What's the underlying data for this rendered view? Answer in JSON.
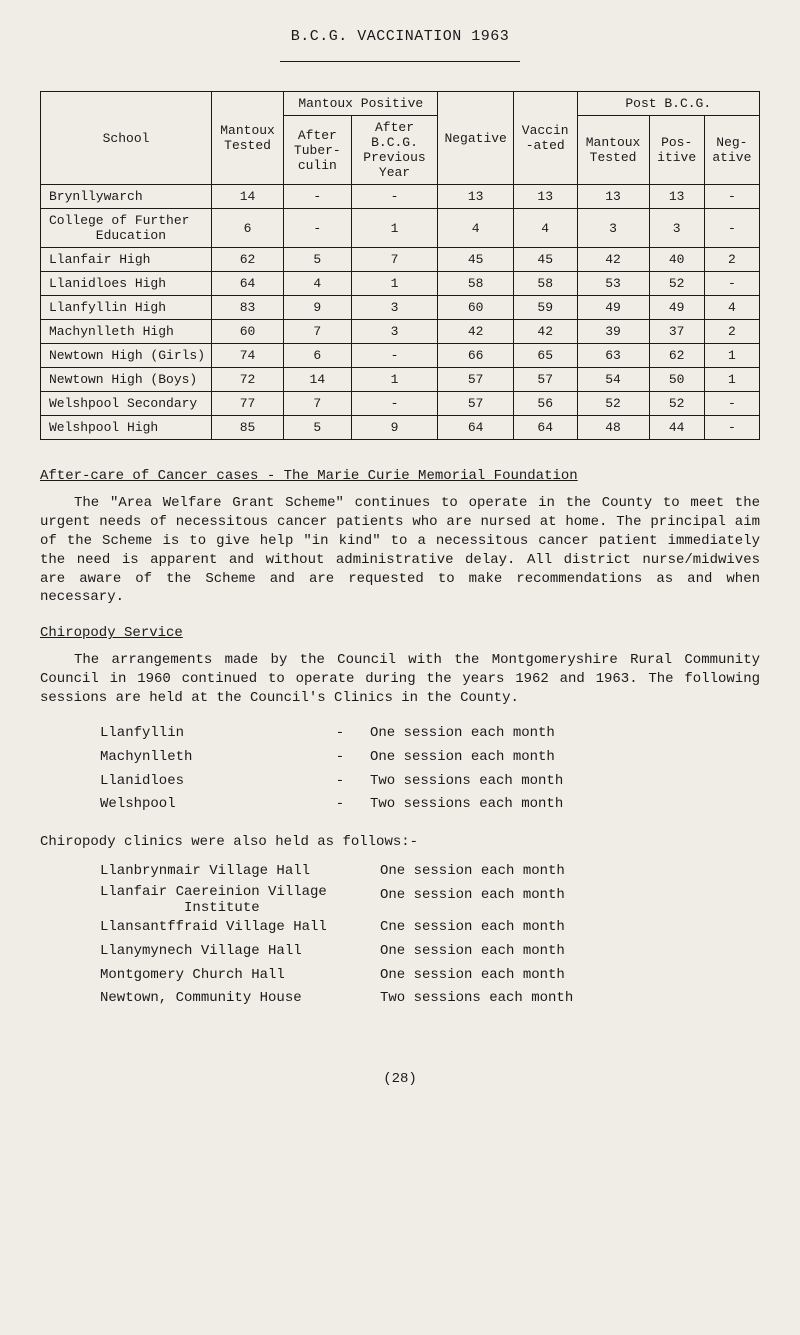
{
  "title": "B.C.G. VACCINATION 1963",
  "table": {
    "headers": {
      "school": "School",
      "mantoux_tested": "Mantoux Tested",
      "mantoux_positive": "Mantoux Positive",
      "after_tuberculin": "After Tuber- culin",
      "after_bcg_prev": "After B.C.G. Previous Year",
      "negative": "Negative",
      "vaccinated": "Vaccin -ated",
      "post_bcg": "Post B.C.G.",
      "pb_mantoux_tested": "Mantoux Tested",
      "pb_positive": "Pos- itive",
      "pb_negative": "Neg- ative"
    },
    "rows": [
      {
        "school": "Brynllywarch",
        "tested": "14",
        "after_t": "-",
        "after_b": "-",
        "neg": "13",
        "vacc": "13",
        "pb_t": "13",
        "pb_p": "13",
        "pb_n": "-"
      },
      {
        "school": "College of Further\n      Education",
        "tested": "6",
        "after_t": "-",
        "after_b": "1",
        "neg": "4",
        "vacc": "4",
        "pb_t": "3",
        "pb_p": "3",
        "pb_n": "-"
      },
      {
        "school": "Llanfair High",
        "tested": "62",
        "after_t": "5",
        "after_b": "7",
        "neg": "45",
        "vacc": "45",
        "pb_t": "42",
        "pb_p": "40",
        "pb_n": "2"
      },
      {
        "school": "Llanidloes High",
        "tested": "64",
        "after_t": "4",
        "after_b": "1",
        "neg": "58",
        "vacc": "58",
        "pb_t": "53",
        "pb_p": "52",
        "pb_n": "-"
      },
      {
        "school": "Llanfyllin High",
        "tested": "83",
        "after_t": "9",
        "after_b": "3",
        "neg": "60",
        "vacc": "59",
        "pb_t": "49",
        "pb_p": "49",
        "pb_n": "4"
      },
      {
        "school": "Machynlleth High",
        "tested": "60",
        "after_t": "7",
        "after_b": "3",
        "neg": "42",
        "vacc": "42",
        "pb_t": "39",
        "pb_p": "37",
        "pb_n": "2"
      },
      {
        "school": "Newtown High (Girls)",
        "tested": "74",
        "after_t": "6",
        "after_b": "-",
        "neg": "66",
        "vacc": "65",
        "pb_t": "63",
        "pb_p": "62",
        "pb_n": "1"
      },
      {
        "school": "Newtown High (Boys)",
        "tested": "72",
        "after_t": "14",
        "after_b": "1",
        "neg": "57",
        "vacc": "57",
        "pb_t": "54",
        "pb_p": "50",
        "pb_n": "1"
      },
      {
        "school": "Welshpool Secondary",
        "tested": "77",
        "after_t": "7",
        "after_b": "-",
        "neg": "57",
        "vacc": "56",
        "pb_t": "52",
        "pb_p": "52",
        "pb_n": "-"
      },
      {
        "school": "Welshpool High",
        "tested": "85",
        "after_t": "5",
        "after_b": "9",
        "neg": "64",
        "vacc": "64",
        "pb_t": "48",
        "pb_p": "44",
        "pb_n": "-"
      }
    ]
  },
  "aftercare": {
    "heading": "After-care of Cancer cases - The Marie Curie Memorial Foundation",
    "para": "The \"Area Welfare Grant Scheme\" continues to operate in the County to meet the urgent needs of necessitous cancer patients who are nursed at home. The principal aim of the Scheme is to give help \"in kind\" to a necessitous cancer patient immediately the need is apparent and without administrative delay. All district nurse/midwives are aware of the Scheme and are requested to make recommendations as and when necessary."
  },
  "chiropody": {
    "heading": "Chiropody Service",
    "para": "The arrangements made by the Council with the Montgomeryshire Rural Community Council in 1960 continued to operate during the years 1962 and 1963. The following sessions are held at the Council's Clinics in the County.",
    "sessions1": [
      {
        "place": "Llanfyllin",
        "dash": "-",
        "freq": "One session each month"
      },
      {
        "place": "Machynlleth",
        "dash": "-",
        "freq": "One session each month"
      },
      {
        "place": "Llanidloes",
        "dash": "-",
        "freq": "Two sessions each month"
      },
      {
        "place": "Welshpool",
        "dash": "-",
        "freq": "Two sessions each month"
      }
    ],
    "line2": "Chiropody clinics were also held as follows:-",
    "sessions2": [
      {
        "place": "Llanbrynmair Village Hall",
        "freq": "One session each month"
      },
      {
        "place": "Llanfair Caereinion Village\n          Institute",
        "freq": "One session each month"
      },
      {
        "place": "Llansantffraid Village Hall",
        "freq": "Cne session each month"
      },
      {
        "place": "Llanymynech Village Hall",
        "freq": "One session each month"
      },
      {
        "place": "Montgomery Church Hall",
        "freq": "One session each month"
      },
      {
        "place": "Newtown, Community House",
        "freq": "Two sessions each month"
      }
    ]
  },
  "footer": "(28)"
}
